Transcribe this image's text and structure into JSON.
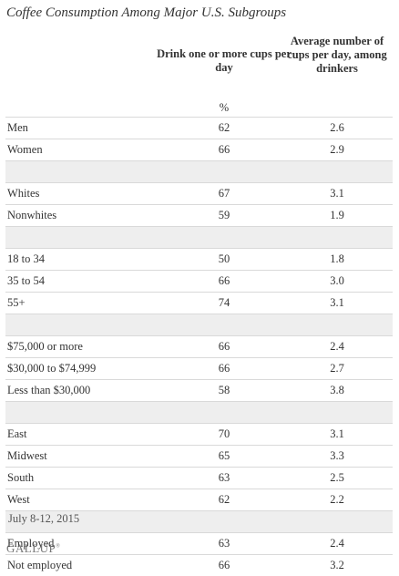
{
  "chart_data": {
    "type": "table",
    "title": "Coffee Consumption Among Major U.S. Subgroups",
    "columns": [
      "Drink one or more cups per day",
      "Average number of cups per day, among drinkers"
    ],
    "unit_label": "%",
    "groups": [
      {
        "rows": [
          {
            "label": "Men",
            "pct": "62",
            "avg": "2.6"
          },
          {
            "label": "Women",
            "pct": "66",
            "avg": "2.9"
          }
        ]
      },
      {
        "rows": [
          {
            "label": "Whites",
            "pct": "67",
            "avg": "3.1"
          },
          {
            "label": "Nonwhites",
            "pct": "59",
            "avg": "1.9"
          }
        ]
      },
      {
        "rows": [
          {
            "label": "18 to 34",
            "pct": "50",
            "avg": "1.8"
          },
          {
            "label": "35 to 54",
            "pct": "66",
            "avg": "3.0"
          },
          {
            "label": "55+",
            "pct": "74",
            "avg": "3.1"
          }
        ]
      },
      {
        "rows": [
          {
            "label": "$75,000 or more",
            "pct": "66",
            "avg": "2.4"
          },
          {
            "label": "$30,000 to $74,999",
            "pct": "66",
            "avg": "2.7"
          },
          {
            "label": "Less than $30,000",
            "pct": "58",
            "avg": "3.8"
          }
        ]
      },
      {
        "rows": [
          {
            "label": "East",
            "pct": "70",
            "avg": "3.1"
          },
          {
            "label": "Midwest",
            "pct": "65",
            "avg": "3.3"
          },
          {
            "label": "South",
            "pct": "63",
            "avg": "2.5"
          },
          {
            "label": "West",
            "pct": "62",
            "avg": "2.2"
          }
        ]
      },
      {
        "rows": [
          {
            "label": "Employed",
            "pct": "63",
            "avg": "2.4"
          },
          {
            "label": "Not employed",
            "pct": "66",
            "avg": "3.2"
          }
        ]
      }
    ]
  },
  "footnote": "July 8-12, 2015",
  "logo": "GALLUP"
}
